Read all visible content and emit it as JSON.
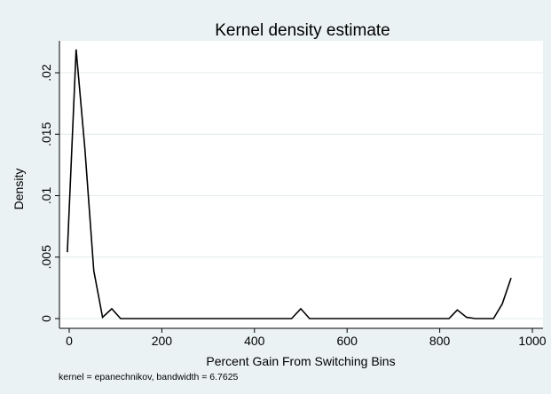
{
  "chart_data": {
    "type": "line",
    "title": "Kernel density estimate",
    "xlabel": "Percent Gain From Switching Bins",
    "ylabel": "Density",
    "note": "kernel = epanechnikov, bandwidth = 6.7625",
    "xlim": [
      -20,
      1000
    ],
    "ylim": [
      0,
      0.022
    ],
    "x_ticks": [
      0,
      200,
      400,
      600,
      800,
      1000
    ],
    "x_tick_labels": [
      "0",
      "200",
      "400",
      "600",
      "800",
      "1000"
    ],
    "y_ticks": [
      0,
      0.005,
      0.01,
      0.015,
      0.02
    ],
    "y_tick_labels": [
      "0",
      ".005",
      ".01",
      ".015",
      ".02"
    ],
    "grid": true,
    "background_color": "#eaf2f3",
    "plot_background_color": "#ffffff",
    "line_color": "#000000",
    "series": [
      {
        "x": [
          -4,
          15,
          34,
          53,
          72,
          92,
          111,
          130,
          480,
          500,
          519,
          538,
          820,
          838,
          858,
          877,
          897,
          916,
          935,
          954
        ],
        "y": [
          0.0054,
          0.0219,
          0.0138,
          0.0039,
          0.0001,
          0.0008,
          0.0,
          0.0,
          0.0,
          0.0008,
          0.0,
          0.0,
          0.0,
          0.0007,
          0.0001,
          0.0,
          0.0,
          0.0,
          0.0012,
          0.0033
        ]
      }
    ]
  }
}
